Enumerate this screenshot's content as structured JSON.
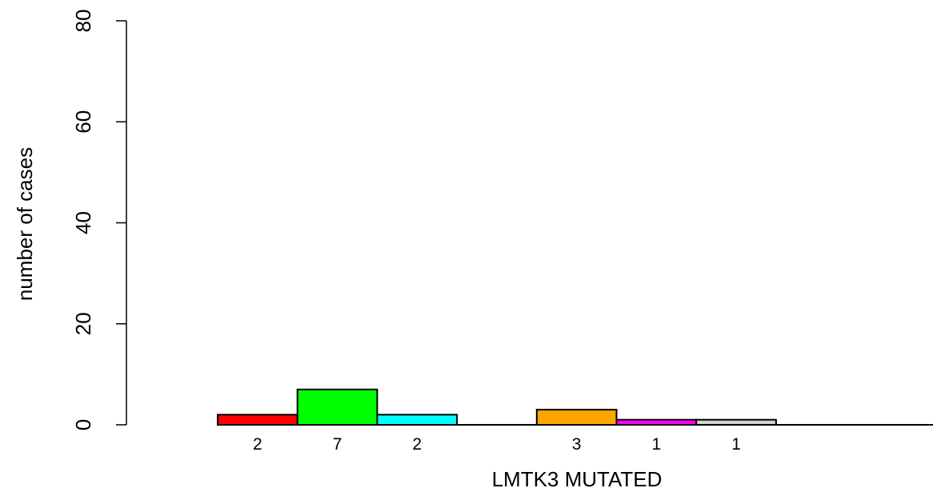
{
  "chart_data": {
    "type": "bar",
    "xlabel": "LMTK3 MUTATED",
    "ylabel": "number of cases",
    "ylim": [
      0,
      80
    ],
    "yticks": [
      0,
      20,
      40,
      60,
      80
    ],
    "bars": [
      {
        "value": 2,
        "label": "2",
        "color": "#ff0000"
      },
      {
        "value": 7,
        "label": "7",
        "color": "#00ff00"
      },
      {
        "value": 2,
        "label": "2",
        "color": "#00ffff"
      },
      {
        "value": 0,
        "label": "",
        "color": "#ffffff"
      },
      {
        "value": 3,
        "label": "3",
        "color": "#ffa500"
      },
      {
        "value": 1,
        "label": "1",
        "color": "#ff00ff"
      },
      {
        "value": 1,
        "label": "1",
        "color": "#d3d3d3"
      },
      {
        "value": 0,
        "label": "",
        "color": "#ffffff"
      },
      {
        "value": 0,
        "label": "",
        "color": "#ffffff"
      }
    ]
  }
}
